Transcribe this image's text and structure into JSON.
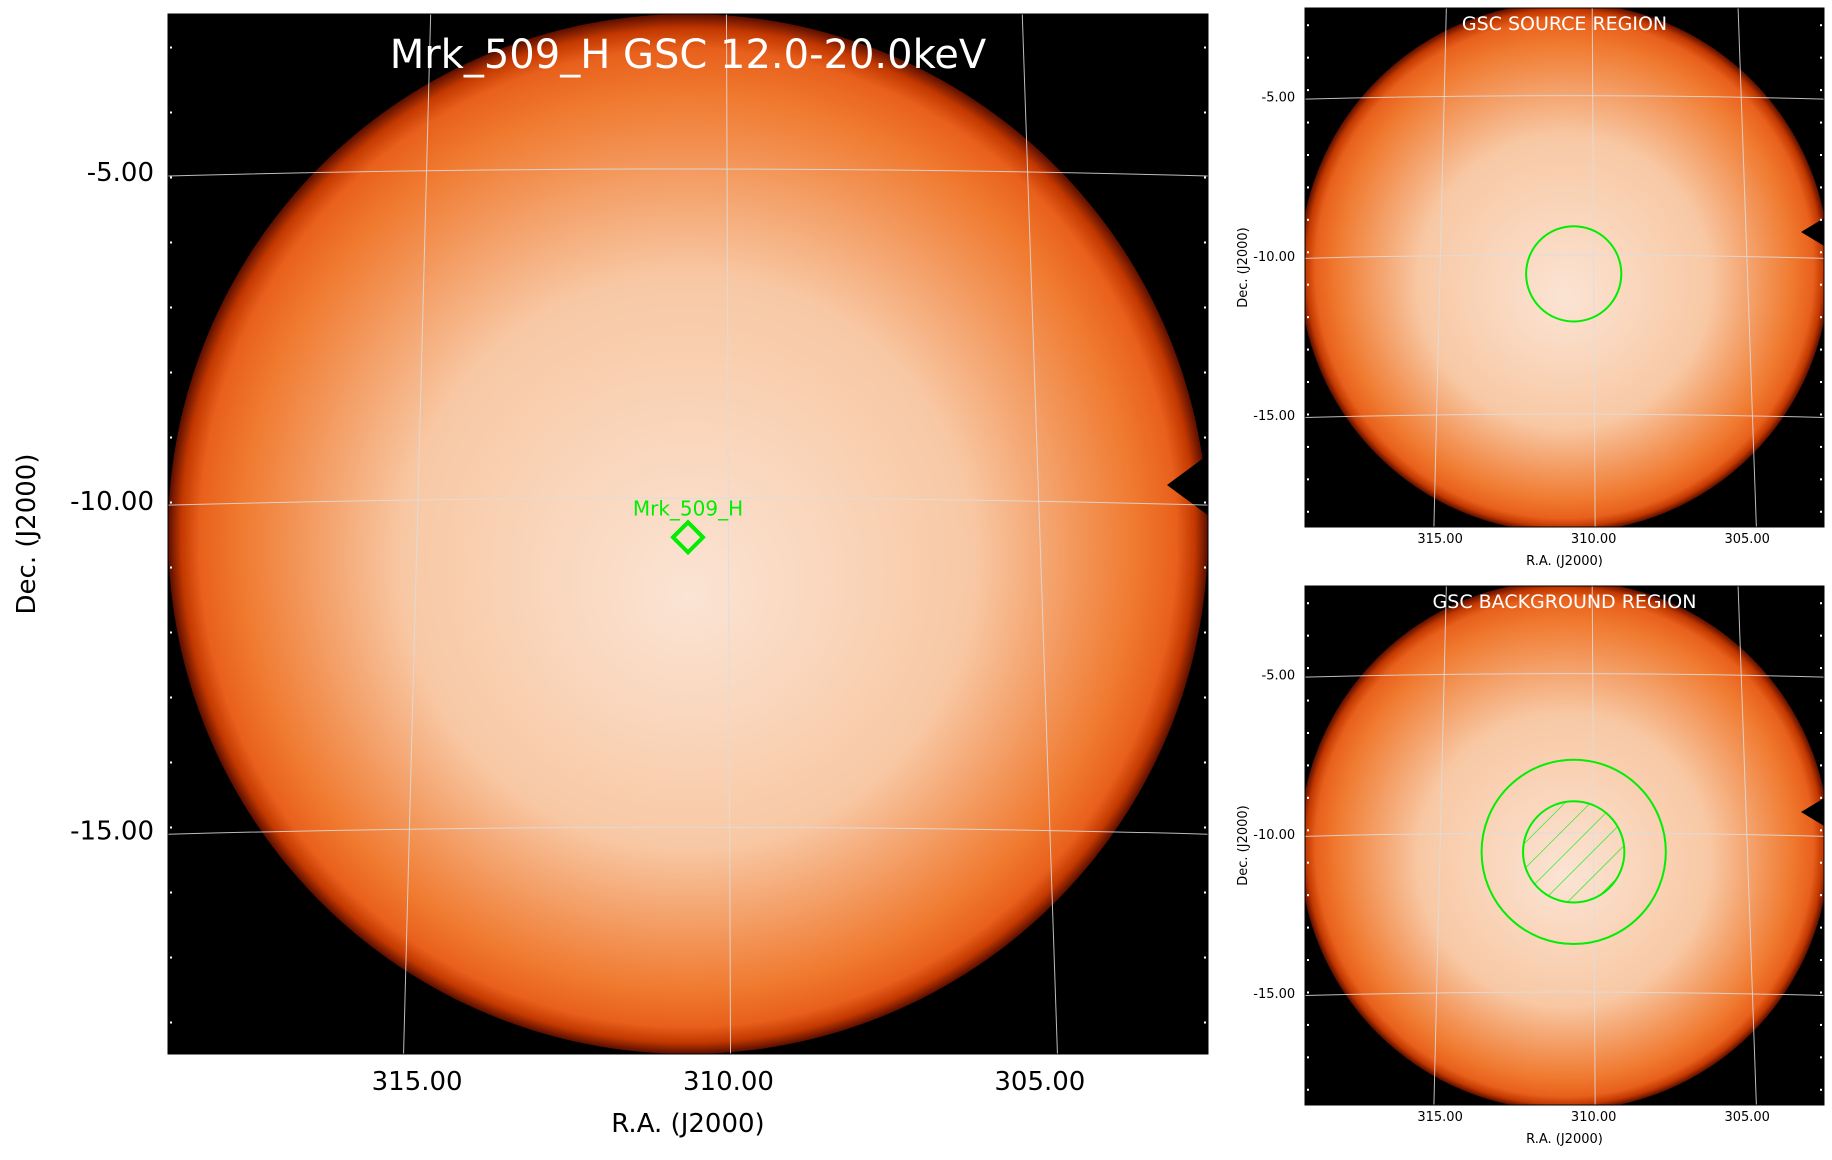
{
  "chart_data": [
    {
      "type": "heatmap",
      "panel": "main",
      "title": "Mrk_509_H GSC 12.0-20.0keV",
      "xlabel": "R.A. (J2000)",
      "ylabel": "Dec. (J2000)",
      "xlim": [
        319,
        302.3
      ],
      "ylim": [
        -18.4,
        -2.6
      ],
      "x_ticks": [
        315.0,
        310.0,
        305.0
      ],
      "x_tick_labels": [
        "315.00",
        "310.00",
        "305.00"
      ],
      "y_ticks": [
        -5.0,
        -10.0,
        -15.0
      ],
      "y_tick_labels": [
        "-5.00",
        "-10.00",
        "-15.00"
      ],
      "grid": true,
      "colormap": "heat (black-orange-white)",
      "source": {
        "name": "Mrk_509_H",
        "ra": 310.65,
        "dec": -10.55,
        "marker": "diamond",
        "color": "#00ee00"
      }
    },
    {
      "type": "heatmap",
      "panel": "source-region",
      "title": "GSC SOURCE REGION",
      "xlabel": "R.A. (J2000)",
      "ylabel": "Dec. (J2000)",
      "xlim": [
        319.4,
        302.5
      ],
      "ylim": [
        -18.5,
        -2.2
      ],
      "x_ticks": [
        315.0,
        310.0,
        305.0
      ],
      "x_tick_labels": [
        "315.00",
        "310.00",
        "305.00"
      ],
      "y_ticks": [
        -5.0,
        -10.0,
        -15.0
      ],
      "y_tick_labels": [
        "-5.00",
        "-10.00",
        "-15.00"
      ],
      "grid": true,
      "regions": [
        {
          "kind": "circle",
          "ra": 310.65,
          "dec": -10.55,
          "radius_deg": 1.55,
          "hatched": false,
          "color": "#00ee00"
        }
      ]
    },
    {
      "type": "heatmap",
      "panel": "background-region",
      "title": "GSC BACKGROUND REGION",
      "xlabel": "R.A. (J2000)",
      "ylabel": "Dec. (J2000)",
      "xlim": [
        319.4,
        302.5
      ],
      "ylim": [
        -18.5,
        -2.2
      ],
      "x_ticks": [
        315.0,
        310.0,
        305.0
      ],
      "x_tick_labels": [
        "315.00",
        "310.00",
        "305.00"
      ],
      "y_ticks": [
        -5.0,
        -10.0,
        -15.0
      ],
      "y_tick_labels": [
        "-5.00",
        "-10.00",
        "-15.00"
      ],
      "grid": true,
      "regions": [
        {
          "kind": "circle",
          "ra": 310.65,
          "dec": -10.55,
          "radius_deg": 3.0,
          "hatched": false,
          "color": "#00ee00"
        },
        {
          "kind": "circle",
          "ra": 310.65,
          "dec": -10.55,
          "radius_deg": 1.65,
          "hatched": true,
          "color": "#00ee00"
        }
      ]
    }
  ],
  "colors": {
    "background": "#000000",
    "edge_dark": "#5a0e00",
    "edge_red": "#c23800",
    "orange": "#f07a30",
    "center": "#fbe4d4",
    "grid": "#dddddd",
    "region": "#00ee00",
    "title_text": "#ffffff"
  }
}
